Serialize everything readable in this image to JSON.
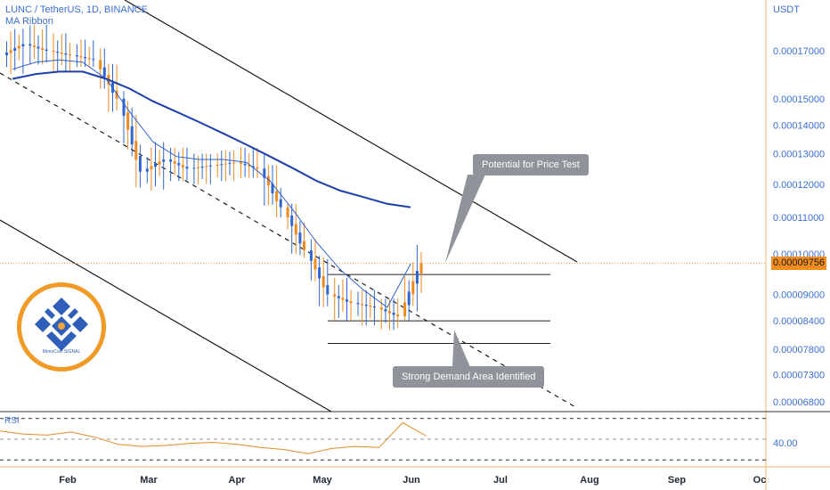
{
  "header": {
    "symbol_line": "LUNC / TetherUS, 1D, BINANCE",
    "indicator": "MA Ribbon"
  },
  "price_axis": {
    "unit_label": "USDT",
    "current_price_label": "0.00009756"
  },
  "callouts": {
    "potential": "Potential for Price Test",
    "demand": "Strong Demand Area Identified"
  },
  "logo": {
    "caption": "MonoCoin SIGNAL"
  },
  "rsi_pane": {
    "label": "RSI",
    "tick_label": "40.00"
  },
  "colors": {
    "up_candle": "#2f66d0",
    "down_candle": "#f08a1f",
    "ma_fast": "#2f5fd0",
    "ma_slow": "#1c3fb0",
    "rsi_line": "#e88a22",
    "trendline": "#1a1a1a",
    "axis_text": "#3a6fd8"
  },
  "chart_data": {
    "type": "candlestick",
    "title": "LUNC / TetherUS, 1D, BINANCE",
    "y_scale": "log",
    "y_ticks": [
      "0.00017000",
      "0.00015000",
      "0.00014000",
      "0.00013000",
      "0.00012000",
      "0.00011000",
      "0.00010000",
      "0.00009000",
      "0.00008400",
      "0.00007800",
      "0.00007300",
      "0.00006800"
    ],
    "x_ticks": [
      "Feb",
      "Mar",
      "Apr",
      "May",
      "Jun",
      "Jul",
      "Aug",
      "Sep",
      "Oc"
    ],
    "current_price": 9.756e-05,
    "horizontal_levels": [
      9.48e-05,
      8.4e-05,
      7.92e-05
    ],
    "ohlc_weekly_approx": [
      {
        "t": "Jan wk4",
        "o": 0.000168,
        "h": 0.00018,
        "l": 0.00016,
        "c": 0.000173
      },
      {
        "t": "Feb wk1",
        "o": 0.000173,
        "h": 0.000182,
        "l": 0.000164,
        "c": 0.00017
      },
      {
        "t": "Feb wk2",
        "o": 0.00017,
        "h": 0.000178,
        "l": 0.000161,
        "c": 0.000168
      },
      {
        "t": "Feb wk3",
        "o": 0.000168,
        "h": 0.000175,
        "l": 0.000163,
        "c": 0.000166
      },
      {
        "t": "Feb wk4",
        "o": 0.000166,
        "h": 0.000171,
        "l": 0.000145,
        "c": 0.00015
      },
      {
        "t": "Mar wk1",
        "o": 0.00015,
        "h": 0.000153,
        "l": 0.000119,
        "c": 0.000124
      },
      {
        "t": "Mar wk2",
        "o": 0.000124,
        "h": 0.000134,
        "l": 0.000118,
        "c": 0.000128
      },
      {
        "t": "Mar wk3",
        "o": 0.000128,
        "h": 0.000132,
        "l": 0.000121,
        "c": 0.000125
      },
      {
        "t": "Mar wk4",
        "o": 0.000125,
        "h": 0.00013,
        "l": 0.00012,
        "c": 0.000126
      },
      {
        "t": "Apr wk1",
        "o": 0.000126,
        "h": 0.000131,
        "l": 0.000121,
        "c": 0.000127
      },
      {
        "t": "Apr wk2",
        "o": 0.000127,
        "h": 0.000132,
        "l": 0.000122,
        "c": 0.000125
      },
      {
        "t": "Apr wk3",
        "o": 0.000125,
        "h": 0.00013,
        "l": 0.00011,
        "c": 0.000113
      },
      {
        "t": "Apr wk4",
        "o": 0.000113,
        "h": 0.000114,
        "l": 9.9e-05,
        "c": 0.000101
      },
      {
        "t": "May wk1",
        "o": 0.000101,
        "h": 0.000104,
        "l": 7.9e-05,
        "c": 9e-05
      },
      {
        "t": "May wk2",
        "o": 9e-05,
        "h": 9.4e-05,
        "l": 8.4e-05,
        "c": 8.8e-05
      },
      {
        "t": "May wk3",
        "o": 8.8e-05,
        "h": 9.1e-05,
        "l": 8.3e-05,
        "c": 8.7e-05
      },
      {
        "t": "May wk4",
        "o": 8.7e-05,
        "h": 8.9e-05,
        "l": 8.2e-05,
        "c": 8.5e-05
      },
      {
        "t": "Jun wk1",
        "o": 8.5e-05,
        "h": 0.000118,
        "l": 8.4e-05,
        "c": 9.76e-05
      }
    ],
    "rsi": {
      "label": "RSI",
      "ticks": [
        40.0
      ],
      "approx_values": [
        58,
        55,
        54,
        57,
        52,
        45,
        43,
        44,
        46,
        47,
        45,
        42,
        40,
        36,
        41,
        43,
        42,
        66,
        53
      ]
    }
  }
}
